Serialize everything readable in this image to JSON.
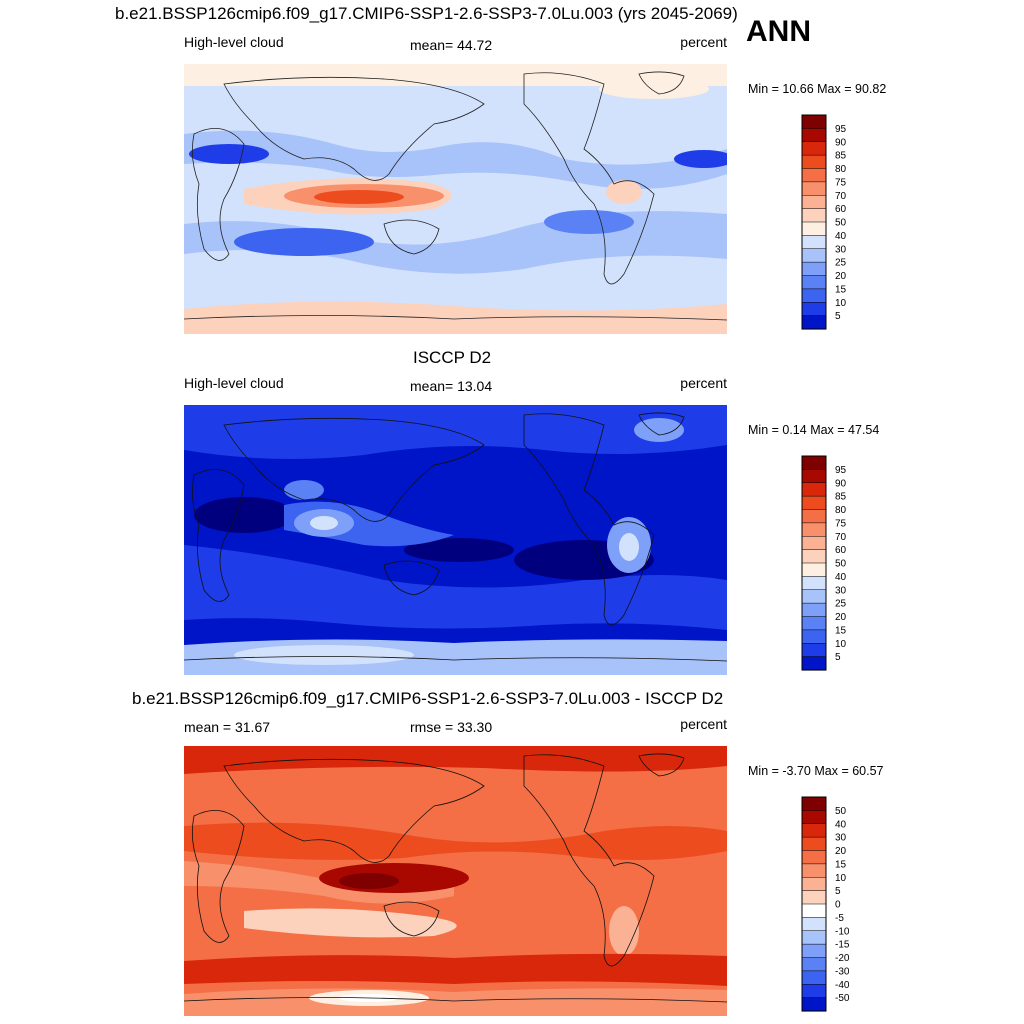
{
  "season_label": "ANN",
  "colormap": {
    "full": [
      "#00007f",
      "#0014c8",
      "#1e3ce8",
      "#3c64f0",
      "#5a82f5",
      "#7ea0f8",
      "#a8c2fa",
      "#d2e2fc",
      "#fdefe2",
      "#fcd2bc",
      "#fbb194",
      "#f9906c",
      "#f46f45",
      "#ed4c1f",
      "#d8270b",
      "#a80800",
      "#7f0000"
    ],
    "diff": [
      "#00007f",
      "#0014c8",
      "#1e3ce8",
      "#3c64f0",
      "#5a82f5",
      "#7ea0f8",
      "#a8c2fa",
      "#d2e2fc",
      "#ffffff",
      "#fcd2bc",
      "#fbb194",
      "#f9906c",
      "#f46f45",
      "#ed4c1f",
      "#d8270b",
      "#a80800",
      "#7f0000"
    ]
  },
  "chart_data": [
    {
      "type": "heatmap",
      "title": "b.e21.BSSP126cmip6.f09_g17.CMIP6-SSP1-2.6-SSP3-7.0Lu.003 (yrs 2045-2069)",
      "left_label": "High-level cloud",
      "center_label": "mean=  44.72",
      "right_label": "percent",
      "minmax_label": "Min =  10.66 Max =  90.82",
      "stats": {
        "mean": 44.72,
        "min": 10.66,
        "max": 90.82
      },
      "colorbar": {
        "levels": [
          "5",
          "10",
          "15",
          "20",
          "25",
          "30",
          "40",
          "50",
          "60",
          "70",
          "75",
          "80",
          "85",
          "90",
          "95"
        ]
      }
    },
    {
      "type": "heatmap",
      "title": "ISCCP D2",
      "left_label": "High-level cloud",
      "center_label": "mean=  13.04",
      "right_label": "percent",
      "minmax_label": "Min =   0.14 Max =  47.54",
      "stats": {
        "mean": 13.04,
        "min": 0.14,
        "max": 47.54
      },
      "colorbar": {
        "levels": [
          "5",
          "10",
          "15",
          "20",
          "25",
          "30",
          "40",
          "50",
          "60",
          "70",
          "75",
          "80",
          "85",
          "90",
          "95"
        ]
      }
    },
    {
      "type": "heatmap",
      "title": "b.e21.BSSP126cmip6.f09_g17.CMIP6-SSP1-2.6-SSP3-7.0Lu.003 - ISCCP D2",
      "left_label": "mean =  31.67",
      "center_label": "rmse =  33.30",
      "right_label": "percent",
      "minmax_label": "Min =  -3.70 Max =  60.57",
      "stats": {
        "mean": 31.67,
        "rmse": 33.3,
        "min": -3.7,
        "max": 60.57
      },
      "colorbar": {
        "levels": [
          "50",
          "40",
          "30",
          "20",
          "15",
          "10",
          "5",
          "0",
          "-5",
          "-10",
          "-15",
          "-20",
          "-30",
          "-40",
          "-50"
        ]
      }
    }
  ]
}
